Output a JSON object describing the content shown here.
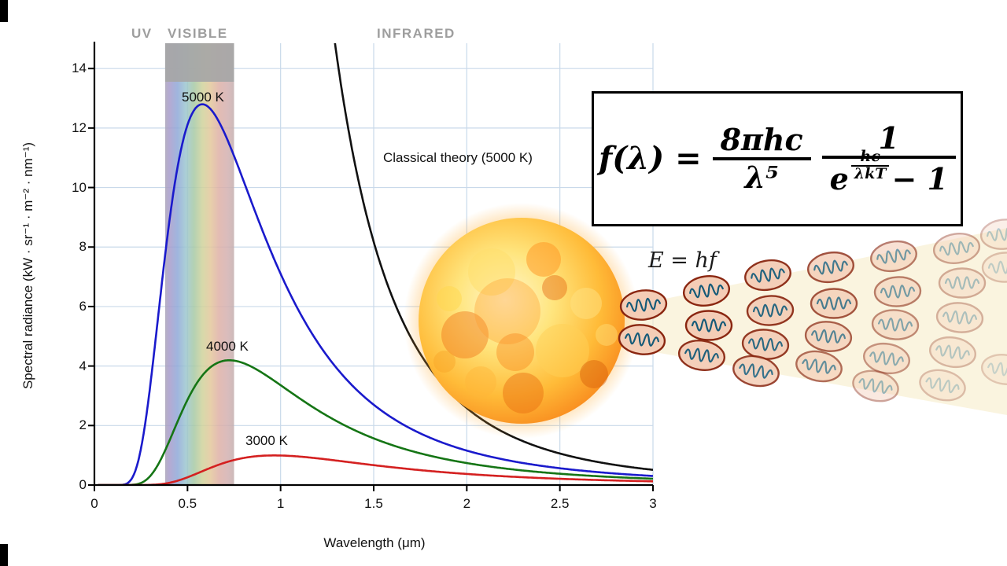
{
  "scene": {
    "region_labels": {
      "uv": "UV",
      "visible": "VISIBLE",
      "infrared": "INFRARED"
    },
    "emission_label": "E = hf"
  },
  "formula": {
    "lhs": "f(λ) =",
    "frac1_num": "8πhc",
    "frac1_den": "λ⁵",
    "frac2_num": "1",
    "e": "e",
    "exp_num": "hc",
    "exp_den": "λkT",
    "minus_one": "− 1"
  },
  "beam": {
    "color": "#f6ecca",
    "opacity": 0.6
  },
  "photon_style": {
    "fill": "#f4cdb6",
    "stroke": "#8a2610",
    "wave": "#155a78",
    "count": 26
  },
  "sun": {
    "core_stops": [
      [
        0,
        "#fff6cd"
      ],
      [
        0.3,
        "#ffe57e"
      ],
      [
        0.6,
        "#ffbb38"
      ],
      [
        0.85,
        "#f8871c"
      ],
      [
        1,
        "#e9680e"
      ]
    ],
    "glow_stops": [
      [
        0,
        "#ffb832",
        0.9
      ],
      [
        0.75,
        "#ffaa28",
        0.55
      ],
      [
        0.88,
        "#ffa828",
        0.25
      ],
      [
        1,
        "#ffa828",
        0
      ]
    ]
  },
  "chart_data": {
    "type": "line",
    "title": "",
    "xlabel": "Wavelength (μm)",
    "ylabel": "Spectral radiance (kW · sr⁻¹ · m⁻² · nm⁻¹)",
    "xlim": [
      0,
      3
    ],
    "ylim": [
      0,
      14.85
    ],
    "x_ticks": [
      0,
      0.5,
      1,
      1.5,
      2,
      2.5,
      3
    ],
    "x_tick_labels": [
      "0",
      "0.5",
      "1",
      "1.5",
      "2",
      "2.5",
      "3"
    ],
    "y_ticks": [
      0,
      2,
      4,
      6,
      8,
      10,
      12,
      14
    ],
    "grid": true,
    "grid_color": "#c9d9ea",
    "visible_band": {
      "range_um": [
        0.38,
        0.75
      ],
      "colors": [
        [
          0,
          "#a9a2b8"
        ],
        [
          0.06,
          "#a79bcb"
        ],
        [
          0.18,
          "#8fa8d8"
        ],
        [
          0.3,
          "#9cc6cf"
        ],
        [
          0.42,
          "#a7c9a5"
        ],
        [
          0.54,
          "#cfd29b"
        ],
        [
          0.66,
          "#e3c79b"
        ],
        [
          0.78,
          "#deb0a6"
        ],
        [
          0.9,
          "#d4b0b0"
        ],
        [
          1,
          "#c3aeae"
        ]
      ]
    },
    "planck_constants": {
      "c1": 119.104,
      "c2": 14388
    },
    "series": [
      {
        "name": "5000 K",
        "label_text": "5000 K",
        "model": "planck",
        "temperature": 5000,
        "color": "#1a1acc",
        "peak": {
          "wavelength_um": 0.58,
          "radiance": 12.8
        },
        "samples_x": [
          0.2,
          0.4,
          0.6,
          0.8,
          1.0,
          1.2,
          1.4,
          1.6,
          1.8,
          2.0,
          2.2,
          2.4,
          2.6,
          2.8,
          3.0
        ],
        "samples_y": [
          0.21,
          8.7,
          12.8,
          10.2,
          7.1,
          4.8,
          3.25,
          2.25,
          1.6,
          1.16,
          0.86,
          0.65,
          0.5,
          0.39,
          0.3
        ]
      },
      {
        "name": "4000 K",
        "label_text": "4000 K",
        "model": "planck",
        "temperature": 4000,
        "color": "#157515",
        "peak": {
          "wavelength_um": 0.72,
          "radiance": 4.2
        },
        "samples_x": [
          0.2,
          0.4,
          0.6,
          0.8,
          1.0,
          1.2,
          1.4,
          1.6,
          1.8,
          2.0,
          2.2,
          2.4,
          2.6,
          2.8,
          3.0
        ],
        "samples_y": [
          0.01,
          1.45,
          3.83,
          4.1,
          3.36,
          2.52,
          1.84,
          1.34,
          0.99,
          0.74,
          0.56,
          0.43,
          0.34,
          0.27,
          0.21
        ]
      },
      {
        "name": "3000 K",
        "label_text": "3000 K",
        "model": "planck",
        "temperature": 3000,
        "color": "#d42020",
        "peak": {
          "wavelength_um": 0.97,
          "radiance": 1.0
        },
        "samples_x": [
          0.2,
          0.4,
          0.6,
          0.8,
          1.0,
          1.2,
          1.4,
          1.6,
          1.8,
          2.0,
          2.2,
          2.4,
          2.6,
          2.8,
          3.0
        ],
        "samples_y": [
          0.0,
          0.07,
          0.52,
          0.91,
          0.99,
          0.9,
          0.75,
          0.6,
          0.47,
          0.37,
          0.29,
          0.23,
          0.19,
          0.15,
          0.12
        ]
      },
      {
        "name": "Classical theory (5000 K)",
        "label_text": "Classical theory (5000 K)",
        "model": "rayleigh-jeans",
        "temperature": 5000,
        "color": "#111111",
        "samples_x": [
          1.3,
          1.4,
          1.6,
          1.8,
          2.0,
          2.2,
          2.4,
          2.6,
          2.8,
          3.0
        ],
        "samples_y": [
          14.5,
          10.8,
          6.3,
          3.9,
          2.6,
          1.77,
          1.25,
          0.91,
          0.67,
          0.51
        ]
      }
    ]
  }
}
